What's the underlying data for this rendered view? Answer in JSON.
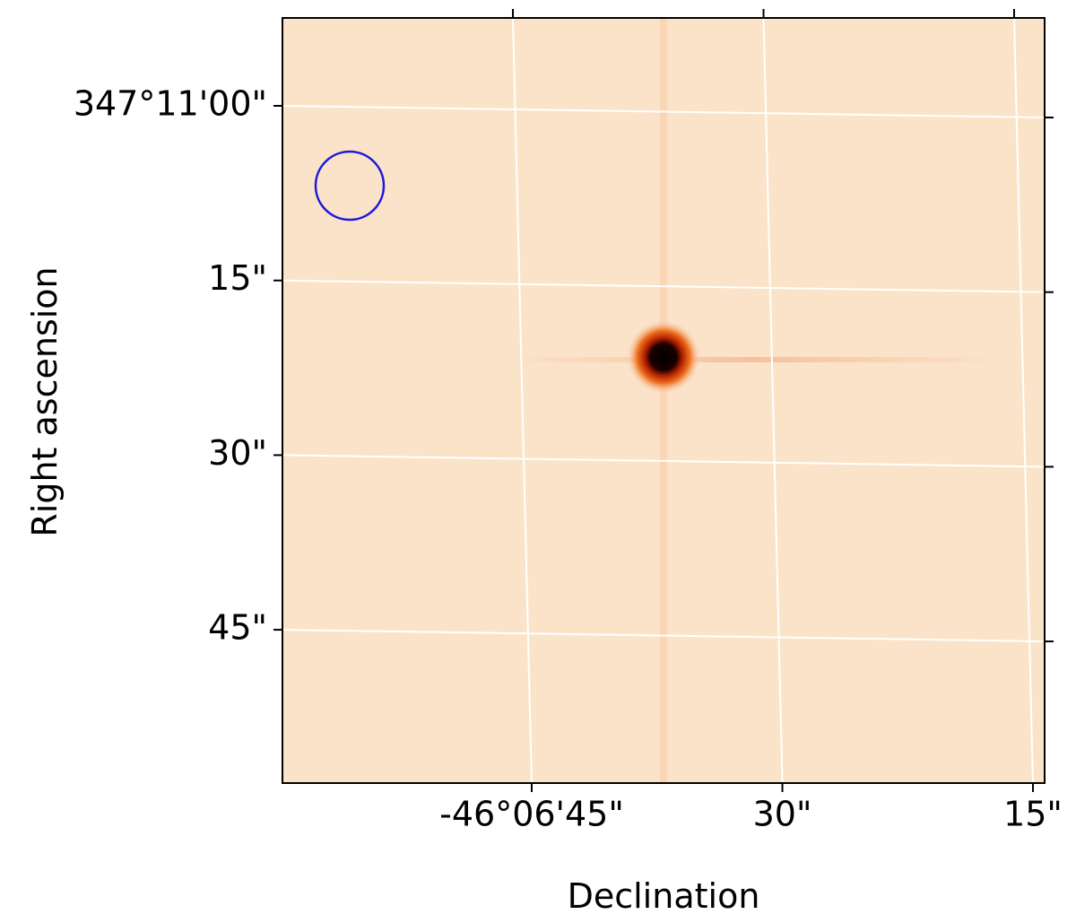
{
  "chart_data": {
    "type": "image",
    "x_label": "Declination",
    "y_label": "Right ascension",
    "xlim": [
      -46.116644,
      -46.103973
    ],
    "ylim": [
      347.199491,
      347.181236
    ],
    "xticks": [
      {
        "value": -46.1125,
        "label": "-46°06'45\""
      },
      {
        "value": -46.108333,
        "label": "30\""
      },
      {
        "value": -46.104167,
        "label": "15\""
      }
    ],
    "yticks": [
      {
        "value": 347.183333,
        "label": "347°11'00\""
      },
      {
        "value": 347.1875,
        "label": "15\""
      },
      {
        "value": 347.191667,
        "label": "30\""
      },
      {
        "value": 347.195833,
        "label": "45\""
      }
    ],
    "grid": true,
    "grid_color": "#ffffff",
    "background": "#fbe3c9",
    "marker_color": "#1a1adc"
  }
}
